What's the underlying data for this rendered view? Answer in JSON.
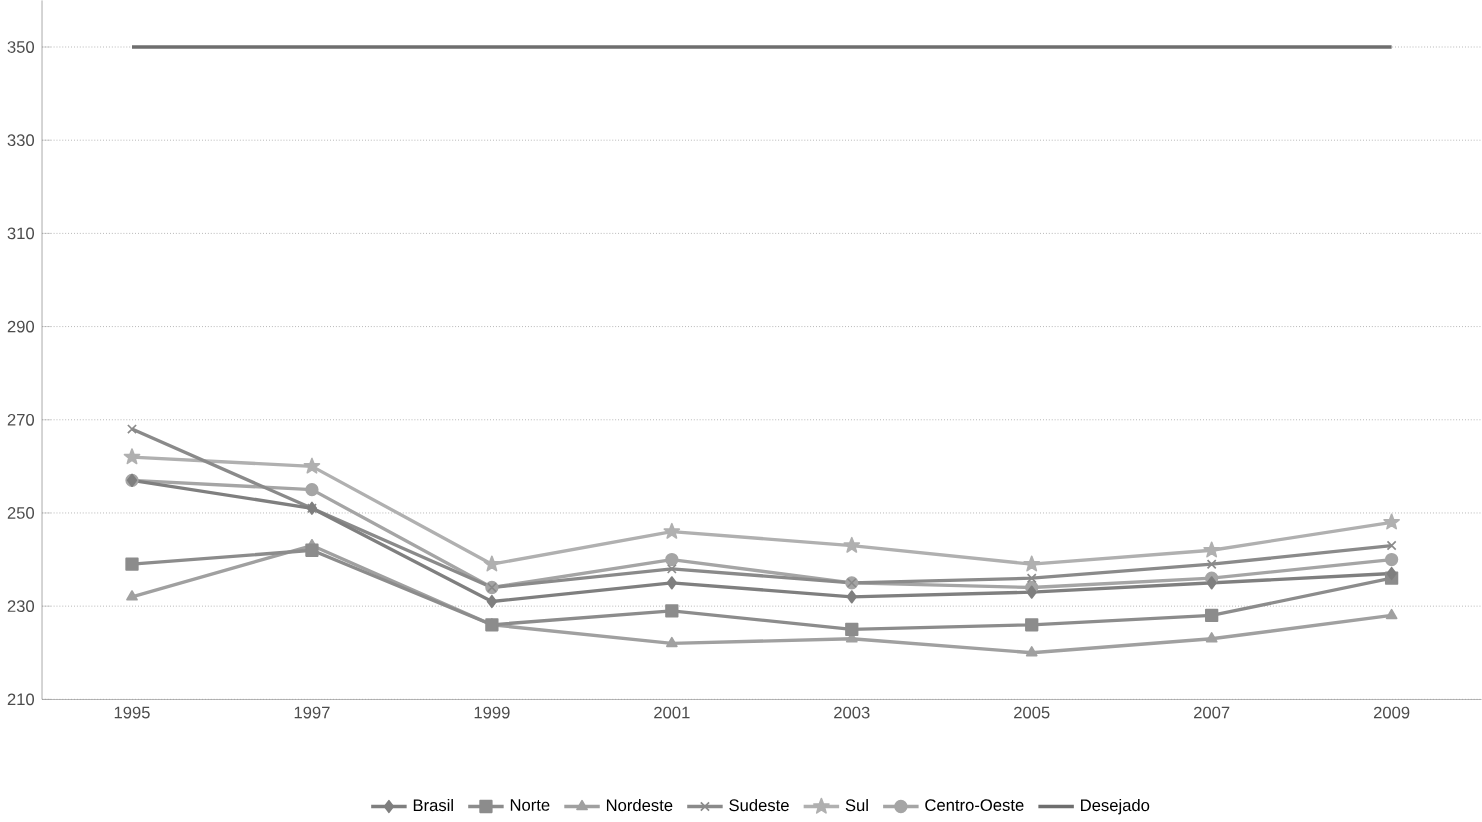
{
  "chart_data": {
    "type": "line",
    "categories": [
      "1995",
      "1997",
      "1999",
      "2001",
      "2003",
      "2005",
      "2007",
      "2009"
    ],
    "series": [
      {
        "name": "Brasil",
        "color": "#7f7f7f",
        "marker": "diamond",
        "values": [
          257,
          251,
          231,
          235,
          232,
          233,
          235,
          237
        ]
      },
      {
        "name": "Norte",
        "color": "#8c8c8c",
        "marker": "square",
        "values": [
          239,
          242,
          226,
          229,
          225,
          226,
          228,
          236
        ]
      },
      {
        "name": "Nordeste",
        "color": "#a0a0a0",
        "marker": "triangle",
        "values": [
          232,
          243,
          226,
          222,
          223,
          220,
          223,
          228
        ]
      },
      {
        "name": "Sudeste",
        "color": "#8a8a8a",
        "marker": "cross",
        "values": [
          268,
          251,
          234,
          238,
          235,
          236,
          239,
          243
        ]
      },
      {
        "name": "Sul",
        "color": "#b0b0b0",
        "marker": "star",
        "values": [
          262,
          260,
          239,
          246,
          243,
          239,
          242,
          248
        ]
      },
      {
        "name": "Centro-Oeste",
        "color": "#a5a5a5",
        "marker": "circle",
        "values": [
          257,
          255,
          234,
          240,
          235,
          234,
          236,
          240
        ]
      },
      {
        "name": "Desejado",
        "color": "#6e6e6e",
        "marker": "none",
        "values": [
          350,
          350,
          350,
          350,
          350,
          350,
          350,
          350
        ]
      }
    ],
    "ylim": [
      210,
      360
    ],
    "yticks": [
      210,
      230,
      250,
      270,
      290,
      310,
      330,
      350
    ],
    "grid": "y",
    "legend": "bottom"
  }
}
